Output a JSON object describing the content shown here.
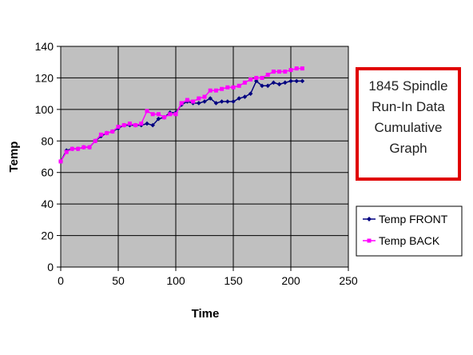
{
  "chart_data": {
    "type": "line",
    "xlabel": "Time",
    "ylabel": "Temp",
    "xlim": [
      0,
      250
    ],
    "ylim": [
      0,
      140
    ],
    "x_ticks": [
      0,
      50,
      100,
      150,
      200,
      250
    ],
    "y_ticks": [
      0,
      20,
      40,
      60,
      80,
      100,
      120,
      140
    ],
    "grid": true,
    "legend_position": "right",
    "annotation": {
      "lines": [
        "1845 Spindle",
        "Run-In Data",
        "Cumulative",
        "Graph"
      ],
      "border_color": "#e00000"
    },
    "colors": {
      "plot_background": "#c0c0c0",
      "grid": "#000000",
      "front": "#000080",
      "back": "#ff00ff"
    },
    "series": [
      {
        "name": "Temp FRONT",
        "marker": "diamond",
        "x": [
          0,
          5,
          10,
          15,
          20,
          25,
          30,
          35,
          40,
          45,
          50,
          55,
          60,
          65,
          70,
          75,
          80,
          85,
          90,
          95,
          100,
          105,
          110,
          115,
          120,
          125,
          130,
          135,
          140,
          145,
          150,
          155,
          160,
          165,
          170,
          175,
          180,
          185,
          190,
          195,
          200,
          205,
          210
        ],
        "values": [
          67,
          74,
          75,
          75,
          76,
          76,
          80,
          83,
          85,
          86,
          88,
          90,
          90,
          90,
          90,
          91,
          90,
          94,
          95,
          98,
          98,
          103,
          105,
          104,
          104,
          105,
          107,
          104,
          105,
          105,
          105,
          107,
          108,
          110,
          118,
          115,
          115,
          117,
          116,
          117,
          118,
          118,
          118
        ]
      },
      {
        "name": "Temp BACK",
        "marker": "square",
        "x": [
          0,
          5,
          10,
          15,
          20,
          25,
          30,
          35,
          40,
          45,
          50,
          55,
          60,
          65,
          70,
          75,
          80,
          85,
          90,
          95,
          100,
          105,
          110,
          115,
          120,
          125,
          130,
          135,
          140,
          145,
          150,
          155,
          160,
          165,
          170,
          175,
          180,
          185,
          190,
          195,
          200,
          205,
          210
        ],
        "values": [
          67,
          73,
          75,
          75,
          76,
          76,
          80,
          84,
          85,
          86,
          89,
          90,
          91,
          90,
          91,
          99,
          97,
          97,
          95,
          97,
          97,
          104,
          106,
          105,
          107,
          108,
          112,
          112,
          113,
          114,
          114,
          115,
          117,
          119,
          120,
          120,
          122,
          124,
          124,
          124,
          125,
          126,
          126
        ]
      }
    ]
  }
}
